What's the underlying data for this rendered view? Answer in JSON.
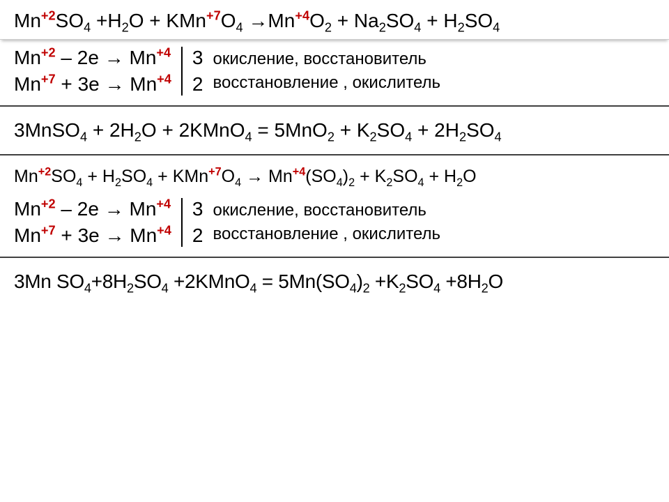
{
  "colors": {
    "background": "#ffffff",
    "text": "#000000",
    "superscript": "#c00000",
    "rule_thin": "#b0b0b0",
    "rule_thick": "#404040"
  },
  "typography": {
    "main_fontsize": 28,
    "small_fontsize": 25,
    "label_fontsize": 24,
    "font_family": "Arial"
  },
  "block1": {
    "equation_html": "Mn<sup>+2</sup>SO<sub>4</sub> +H<sub>2</sub>O + KMn<sup>+7</sup>O<sub>4</sub> →Mn<sup>+4</sup>O<sub>2</sub> + Na<sub>2</sub>SO<sub>4</sub> + H<sub>2</sub>SO<sub>4</sub>",
    "half1_html": "Mn<sup>+2</sup> –  2e → Mn<sup>+4</sup>",
    "half2_html": "Mn<sup>+7</sup>  + 3e → Mn<sup>+4</sup>",
    "mult1": "3",
    "mult2": "2",
    "label1": "окисление, восстановитель",
    "label2": "восстановление , окислитель",
    "balanced_html": "3MnSO<sub>4</sub> + 2H<sub>2</sub>O + 2KMnO<sub>4</sub> = 5MnO<sub>2</sub> + K<sub>2</sub>SO<sub>4</sub> + 2H<sub>2</sub>SO<sub>4</sub>"
  },
  "block2": {
    "equation_html": "Mn<sup>+2</sup>SO<sub>4</sub> +  H<sub>2</sub>SO<sub>4</sub> +  KMn<sup>+7</sup>O<sub>4</sub> → Mn<sup>+4</sup>(SO<sub>4</sub>)<sub>2</sub>  +  K<sub>2</sub>SO<sub>4</sub> +  H<sub>2</sub>O",
    "half1_html": "Mn<sup>+2</sup> –  2e → Mn<sup>+4</sup>",
    "half2_html": "Mn<sup>+7</sup>  + 3e → Mn<sup>+4</sup>",
    "mult1": "3",
    "mult2": "2",
    "label1": "окисление, восстановитель",
    "label2": "восстановление , окислитель",
    "balanced_html": "3Mn SO<sub>4</sub>+8H<sub>2</sub>SO<sub>4</sub> +2KMnO<sub>4</sub> = 5Mn(SO<sub>4</sub>)<sub>2</sub> +K<sub>2</sub>SO<sub>4</sub> +8H<sub>2</sub>O"
  }
}
